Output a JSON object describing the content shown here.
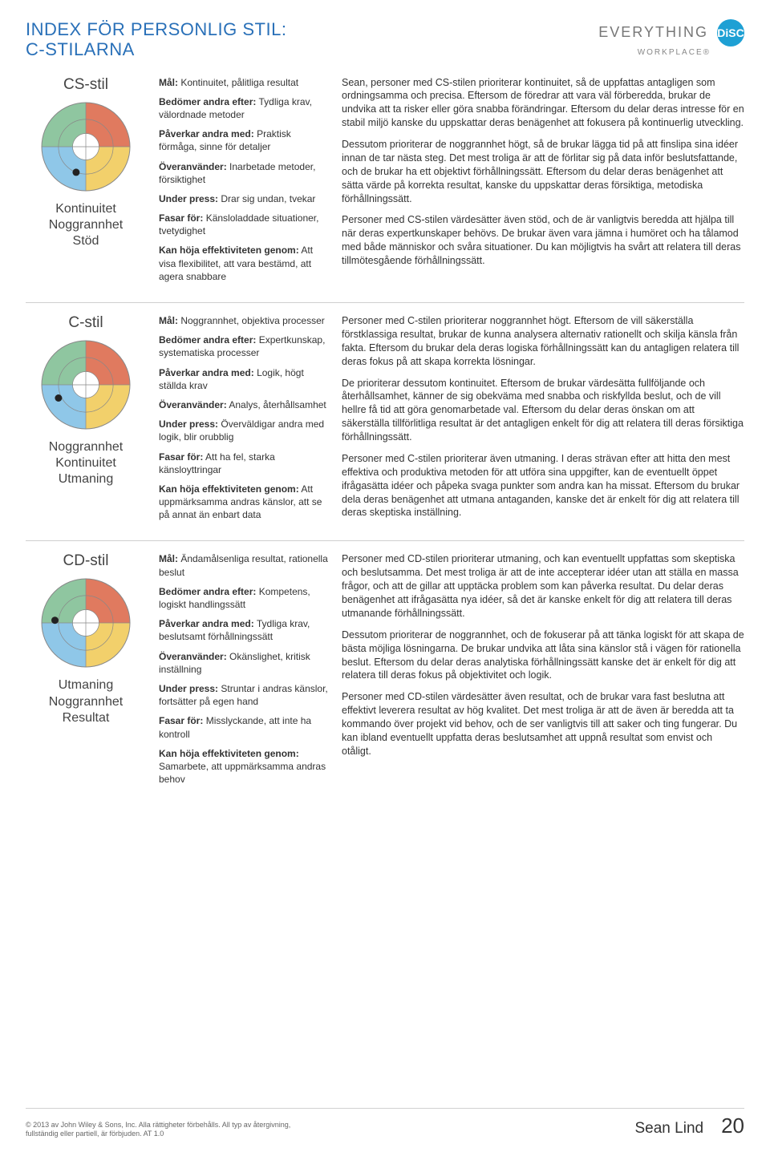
{
  "page": {
    "title_line1": "INDEX FÖR PERSONLIG STIL:",
    "title_line2": "C-STILARNA",
    "logo_text": "EVERYTHING",
    "logo_badge": "DiSC",
    "logo_sub": "WORKPLACE®"
  },
  "chart_colors": {
    "d": "#e07a5f",
    "i": "#f2d06b",
    "s": "#8fc6a0",
    "c": "#8fc7e8",
    "outline": "#888888",
    "dot": "#222222",
    "bg": "#ffffff"
  },
  "styles": [
    {
      "name": "CS-stil",
      "dot_x": -0.22,
      "dot_y": 0.58,
      "priorities": [
        "Kontinuitet",
        "Noggrannhet",
        "Stöd"
      ],
      "attrs": [
        {
          "label": "Mål:",
          "text": "Kontinuitet, pålitliga resultat"
        },
        {
          "label": "Bedömer andra efter:",
          "text": "Tydliga krav, välordnade metoder"
        },
        {
          "label": "Påverkar andra med:",
          "text": "Praktisk förmåga, sinne för detaljer"
        },
        {
          "label": "Överanvänder:",
          "text": "Inarbetade metoder, försiktighet"
        },
        {
          "label": "Under press:",
          "text": "Drar sig undan, tvekar"
        },
        {
          "label": "Fasar för:",
          "text": "Känsloladdade situationer, tvetydighet"
        },
        {
          "label": "Kan höja effektiviteten genom:",
          "text": "Att visa flexibilitet, att vara bestämd, att agera snabbare"
        }
      ],
      "paras": [
        "Sean, personer med CS-stilen prioriterar kontinuitet, så de uppfattas antagligen som ordningsamma och precisa. Eftersom de föredrar att vara väl förberedda, brukar de undvika att ta risker eller göra snabba förändringar. Eftersom du delar deras intresse för en stabil miljö kanske du uppskattar deras benägenhet att fokusera på kontinuerlig utveckling.",
        "Dessutom prioriterar de noggrannhet högt, så de brukar lägga tid på att finslipa sina idéer innan de tar nästa steg. Det mest troliga är att de förlitar sig på data inför beslutsfattande, och de brukar ha ett objektivt förhållningssätt. Eftersom du delar deras benägenhet att sätta värde på korrekta resultat, kanske du uppskattar deras försiktiga, metodiska förhållningssätt.",
        "Personer med CS-stilen värdesätter även stöd, och de är vanligtvis beredda att hjälpa till när deras expertkunskaper behövs. De brukar även vara jämna i humöret och ha tålamod med både människor och svåra situationer. Du kan möjligtvis ha svårt att relatera till deras tillmötesgående förhållningssätt."
      ]
    },
    {
      "name": "C-stil",
      "dot_x": -0.62,
      "dot_y": 0.3,
      "priorities": [
        "Noggrannhet",
        "Kontinuitet",
        "Utmaning"
      ],
      "attrs": [
        {
          "label": "Mål:",
          "text": "Noggrannhet, objektiva processer"
        },
        {
          "label": "Bedömer andra efter:",
          "text": "Expertkunskap, systematiska processer"
        },
        {
          "label": "Påverkar andra med:",
          "text": "Logik, högt ställda krav"
        },
        {
          "label": "Överanvänder:",
          "text": "Analys, återhållsamhet"
        },
        {
          "label": "Under press:",
          "text": "Överväldigar andra med logik, blir orubblig"
        },
        {
          "label": "Fasar för:",
          "text": "Att ha fel, starka känsloyttringar"
        },
        {
          "label": "Kan höja effektiviteten genom:",
          "text": "Att uppmärksamma andras känslor, att se på annat än enbart data"
        }
      ],
      "paras": [
        "Personer med C-stilen prioriterar noggrannhet högt. Eftersom de vill säkerställa förstklassiga resultat, brukar de kunna analysera alternativ rationellt och skilja känsla från fakta. Eftersom du brukar dela deras logiska förhållningssätt kan du antagligen relatera till deras fokus på att skapa korrekta lösningar.",
        "De prioriterar dessutom kontinuitet. Eftersom de brukar värdesätta fullföljande och återhållsamhet, känner de sig obekväma med snabba och riskfyllda beslut, och de vill hellre få tid att göra genomarbetade val. Eftersom du delar deras önskan om att säkerställa tillförlitliga resultat är det antagligen enkelt för dig att relatera till deras försiktiga förhållningssätt.",
        "Personer med C-stilen prioriterar även utmaning. I deras strävan efter att hitta den mest effektiva och produktiva metoden för att utföra sina uppgifter, kan de eventuellt öppet ifrågasätta idéer och påpeka svaga punkter som andra kan ha missat. Eftersom du brukar dela deras benägenhet att utmana antaganden, kanske det är enkelt för dig att relatera till deras skeptiska inställning."
      ]
    },
    {
      "name": "CD-stil",
      "dot_x": -0.7,
      "dot_y": -0.06,
      "priorities": [
        "Utmaning",
        "Noggrannhet",
        "Resultat"
      ],
      "attrs": [
        {
          "label": "Mål:",
          "text": "Ändamålsenliga resultat, rationella beslut"
        },
        {
          "label": "Bedömer andra efter:",
          "text": "Kompetens, logiskt handlingssätt"
        },
        {
          "label": "Påverkar andra med:",
          "text": "Tydliga krav, beslutsamt förhållningssätt"
        },
        {
          "label": "Överanvänder:",
          "text": "Okänslighet, kritisk inställning"
        },
        {
          "label": "Under press:",
          "text": "Struntar i andras känslor, fortsätter på egen hand"
        },
        {
          "label": "Fasar för:",
          "text": "Misslyckande, att inte ha kontroll"
        },
        {
          "label": "Kan höja effektiviteten genom:",
          "text": "Samarbete, att uppmärksamma andras behov"
        }
      ],
      "paras": [
        "Personer med CD-stilen prioriterar utmaning, och kan eventuellt uppfattas som skeptiska och beslutsamma. Det mest troliga är att de inte accepterar idéer utan att ställa en massa frågor, och att de gillar att upptäcka problem som kan påverka resultat. Du delar deras benägenhet att ifrågasätta nya idéer, så det är kanske enkelt för dig att relatera till deras utmanande förhållningssätt.",
        "Dessutom prioriterar de noggrannhet, och de fokuserar på att tänka logiskt för att skapa de bästa möjliga lösningarna. De brukar undvika att låta sina känslor stå i vägen för rationella beslut. Eftersom du delar deras analytiska förhållningssätt kanske det är enkelt för dig att relatera till deras fokus på objektivitet och logik.",
        "Personer med CD-stilen värdesätter även resultat, och de brukar vara fast beslutna att effektivt leverera resultat av hög kvalitet. Det mest troliga är att de även är beredda att ta kommando över projekt vid behov, och de ser vanligtvis till att saker och ting fungerar. Du kan ibland eventuellt uppfatta deras beslutsamhet att uppnå resultat som envist och otåligt."
      ]
    }
  ],
  "footer": {
    "copyright": "© 2013 av John Wiley & Sons, Inc. Alla rättigheter förbehålls. All typ av återgivning, fullständig eller partiell, är förbjuden. AT 1.0",
    "name": "Sean Lind",
    "page": "20"
  }
}
